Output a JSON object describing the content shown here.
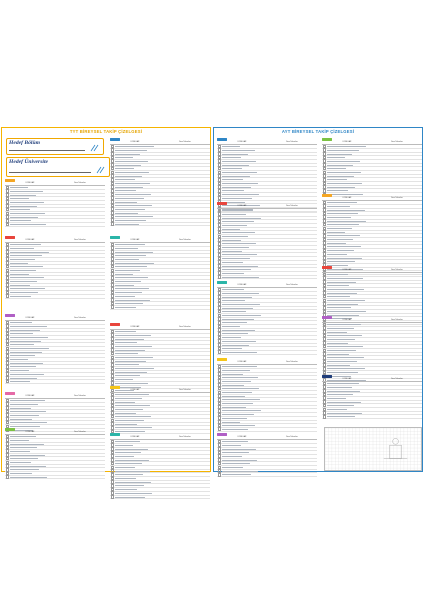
{
  "left": {
    "title": "TYT BİREYSEL TAKİP ÇİZELGESİ",
    "goal_school_label": "Hedef Bölüm",
    "goal_uni_label": "Hedef Üniversite",
    "blocks": [
      {
        "color": "#f5a623",
        "rows": 11
      },
      {
        "color": "#e8453c",
        "rows": 15
      },
      {
        "color": "#b05fc5",
        "rows": 17
      },
      {
        "color": "#e56aa6",
        "rows": 9
      },
      {
        "color": "#7cc242",
        "rows": 12
      },
      {
        "color": "#2f86c6",
        "rows": 22
      },
      {
        "color": "#2bb5a8",
        "rows": 18
      },
      {
        "color": "#e8453c",
        "rows": 17
      },
      {
        "color": "#f5c518",
        "rows": 11
      },
      {
        "color": "#2bb5a8",
        "rows": 16
      }
    ]
  },
  "right": {
    "title": "AYT BİREYSEL TAKİP ÇİZELGESİ",
    "blocks": [
      {
        "color": "#2f86c6",
        "rows": 18
      },
      {
        "color": "#e8453c",
        "rows": 19
      },
      {
        "color": "#2bb5a8",
        "rows": 18
      },
      {
        "color": "#f5c518",
        "rows": 18
      },
      {
        "color": "#b05fc5",
        "rows": 10
      },
      {
        "color": "#7cc242",
        "rows": 14
      },
      {
        "color": "#f5a623",
        "rows": 20
      },
      {
        "color": "#e8453c",
        "rows": 14
      },
      {
        "color": "#b05fc5",
        "rows": 18
      },
      {
        "color": "#1f3d7a",
        "rows": 10
      }
    ]
  },
  "common": {
    "col_left": "KONULAR",
    "col_right": "Ders Tekrarları"
  }
}
